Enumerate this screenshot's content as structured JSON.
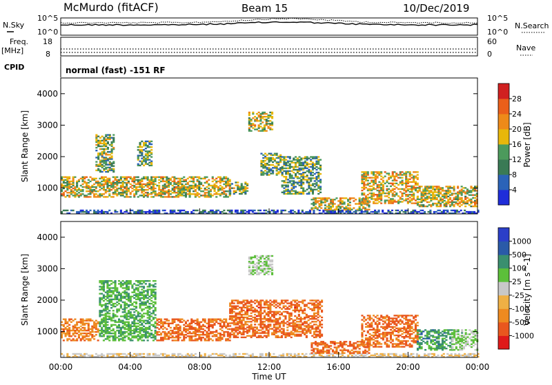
{
  "header": {
    "station": "McMurdo (fitACF)",
    "beam": "Beam 15",
    "date": "10/Dec/2019"
  },
  "top_panels": {
    "nsky_label": "N.Sky",
    "nsearch_label": "N.Search",
    "noise_ticks_left": [
      "10^5",
      "10^0"
    ],
    "noise_ticks_right": [
      "10^5",
      "10^0"
    ],
    "freq_label": "Freq.",
    "freq_unit": "[MHz]",
    "freq_ticks": [
      "18",
      "8"
    ],
    "nave_label": "Nave",
    "nave_ticks": [
      "60",
      "0"
    ],
    "cpid_label": "CPID",
    "cpid_value": "normal (fast) -151 RF"
  },
  "x_axis": {
    "ticks": [
      "00:00",
      "04:00",
      "08:00",
      "12:00",
      "16:00",
      "20:00",
      "00:00"
    ],
    "label": "Time UT"
  },
  "colors": {
    "power": [
      "#1f2dd9",
      "#2b63b8",
      "#3a7a55",
      "#4c9a5c",
      "#e8b70b",
      "#ee8a19",
      "#ea5f1a",
      "#d02020"
    ],
    "velocity": [
      "#df1a1a",
      "#e9571e",
      "#ee8a20",
      "#efb045",
      "#c8c8c8",
      "#5cbf3a",
      "#3a8f6f",
      "#2a5aa8",
      "#2b3fc8"
    ]
  },
  "chart_data": [
    {
      "type": "heatmap",
      "name": "power",
      "ylabel": "Slant Range [km]",
      "ylim": [
        180,
        4500
      ],
      "yticks": [
        1000,
        2000,
        3000,
        4000
      ],
      "xlim_hours": [
        0,
        24
      ],
      "colorbar": {
        "label": "Power [dB]",
        "range": [
          0,
          32
        ],
        "ticks": [
          "4",
          "8",
          "12",
          "16",
          "20",
          "24",
          "28"
        ]
      },
      "echo_regions": [
        {
          "t0": 0.0,
          "t1": 24.0,
          "r0": 180,
          "r1": 300,
          "level": 0.15
        },
        {
          "t0": 0.0,
          "t1": 9.7,
          "r0": 700,
          "r1": 1350,
          "level": 0.55
        },
        {
          "t0": 2.0,
          "t1": 3.0,
          "r0": 1500,
          "r1": 2700,
          "level": 0.45
        },
        {
          "t0": 4.4,
          "t1": 5.2,
          "r0": 1700,
          "r1": 2500,
          "level": 0.4
        },
        {
          "t0": 9.7,
          "t1": 10.7,
          "r0": 800,
          "r1": 1200,
          "level": 0.45
        },
        {
          "t0": 10.8,
          "t1": 12.2,
          "r0": 2800,
          "r1": 3400,
          "level": 0.55
        },
        {
          "t0": 11.5,
          "t1": 12.7,
          "r0": 1400,
          "r1": 2100,
          "level": 0.4
        },
        {
          "t0": 12.7,
          "t1": 15.0,
          "r0": 800,
          "r1": 2000,
          "level": 0.4
        },
        {
          "t0": 14.4,
          "t1": 17.7,
          "r0": 300,
          "r1": 700,
          "level": 0.55
        },
        {
          "t0": 17.3,
          "t1": 20.5,
          "r0": 500,
          "r1": 1500,
          "level": 0.6
        },
        {
          "t0": 20.5,
          "t1": 24.0,
          "r0": 400,
          "r1": 1050,
          "level": 0.55
        }
      ]
    },
    {
      "type": "heatmap",
      "name": "velocity",
      "ylabel": "Slant Range [km]",
      "ylim": [
        180,
        4500
      ],
      "yticks": [
        1000,
        2000,
        3000,
        4000
      ],
      "xlim_hours": [
        0,
        24
      ],
      "colorbar": {
        "label": "Velocity [m s^-1]",
        "ticks": [
          "1000",
          "500",
          "100",
          "25",
          "-25",
          "-100",
          "-500",
          "-1000"
        ]
      },
      "echo_regions": [
        {
          "t0": 0.0,
          "t1": 24.0,
          "r0": 180,
          "r1": 300,
          "level": 0.45
        },
        {
          "t0": 0.0,
          "t1": 2.2,
          "r0": 700,
          "r1": 1400,
          "level": 0.25
        },
        {
          "t0": 2.2,
          "t1": 5.5,
          "r0": 700,
          "r1": 2600,
          "level": 0.65
        },
        {
          "t0": 5.5,
          "t1": 9.7,
          "r0": 700,
          "r1": 1400,
          "level": 0.2
        },
        {
          "t0": 9.7,
          "t1": 15.0,
          "r0": 800,
          "r1": 2000,
          "level": 0.2
        },
        {
          "t0": 10.8,
          "t1": 12.2,
          "r0": 2800,
          "r1": 3400,
          "level": 0.55
        },
        {
          "t0": 14.4,
          "t1": 17.7,
          "r0": 300,
          "r1": 700,
          "level": 0.2
        },
        {
          "t0": 17.3,
          "t1": 20.5,
          "r0": 500,
          "r1": 1500,
          "level": 0.2
        },
        {
          "t0": 20.5,
          "t1": 22.5,
          "r0": 400,
          "r1": 1050,
          "level": 0.7
        },
        {
          "t0": 22.5,
          "t1": 24.0,
          "r0": 400,
          "r1": 1050,
          "level": 0.58
        }
      ]
    }
  ]
}
